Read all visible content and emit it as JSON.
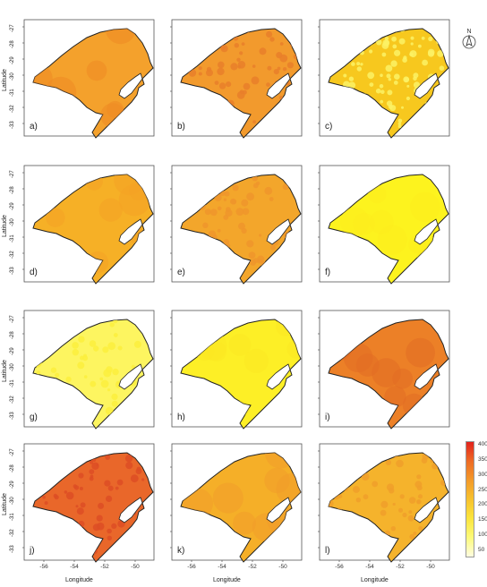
{
  "axes": {
    "x_title": "Longitude",
    "y_title": "Latitude",
    "x_ticks": [
      "-56",
      "-54",
      "-52",
      "-50"
    ],
    "y_ticks": [
      "-27",
      "-28",
      "-29",
      "-30",
      "-31",
      "-32",
      "-33"
    ]
  },
  "north_label": "N",
  "panels": [
    {
      "label": "a)",
      "color": "#f4a12c",
      "hot": "#ee8a25",
      "texture": "smooth"
    },
    {
      "label": "b)",
      "color": "#f29a2d",
      "hot": "#e97f2a",
      "texture": "speckled"
    },
    {
      "label": "c)",
      "color": "#f7c81e",
      "hot": "#fcf265",
      "texture": "spotted"
    },
    {
      "label": "d)",
      "color": "#f6b026",
      "hot": "#f4a324",
      "texture": "smooth"
    },
    {
      "label": "e)",
      "color": "#f3a62b",
      "hot": "#ee952b",
      "texture": "speckled"
    },
    {
      "label": "f)",
      "color": "#fdf31e",
      "hot": "#fdec1d",
      "texture": "smooth"
    },
    {
      "label": "g)",
      "color": "#fdf560",
      "hot": "#fbee3d",
      "texture": "speckled"
    },
    {
      "label": "h)",
      "color": "#fdef26",
      "hot": "#fbe722",
      "texture": "smooth"
    },
    {
      "label": "i)",
      "color": "#ec8027",
      "hot": "#e26b24",
      "texture": "smooth"
    },
    {
      "label": "j)",
      "color": "#e9672a",
      "hot": "#dd4e25",
      "texture": "speckled"
    },
    {
      "label": "k)",
      "color": "#f5af28",
      "hot": "#f09d2a",
      "texture": "smooth"
    },
    {
      "label": "l)",
      "color": "#f5b32c",
      "hot": "#f09f2a",
      "texture": "speckled"
    }
  ],
  "legend": {
    "ticks": [
      "400",
      "350",
      "300",
      "250",
      "200",
      "150",
      "100",
      "50"
    ],
    "colors": [
      "#e2231d",
      "#ee6b25",
      "#f39a2a",
      "#f7c22e",
      "#fbe53d",
      "#fdfa7a",
      "#fefde0"
    ]
  }
}
